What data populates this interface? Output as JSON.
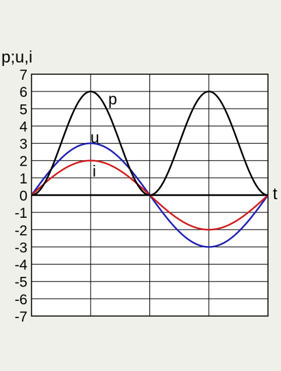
{
  "chart_data": {
    "type": "line",
    "title": "",
    "ylabel": "p;u,i",
    "xlabel": "t",
    "ylim": [
      -7,
      7
    ],
    "yticks": [
      "7",
      "6",
      "5",
      "4",
      "3",
      "2",
      "1",
      "0",
      "-1",
      "-2",
      "-3",
      "-4",
      "-5",
      "-6",
      "-7"
    ],
    "xlim_periods": [
      0,
      1
    ],
    "grid": true,
    "series": [
      {
        "name": "p",
        "label": "p",
        "color": "#000000",
        "amplitude": 3,
        "offset": 3,
        "frequency": 2,
        "phase": "-cos",
        "peak": 6,
        "min": 0
      },
      {
        "name": "u",
        "label": "u",
        "color": "#1f1fb4",
        "amplitude": 3,
        "offset": 0,
        "frequency": 1,
        "phase": "sin",
        "peak": 3,
        "min": -3
      },
      {
        "name": "i",
        "label": "i",
        "color": "#d01c1c",
        "amplitude": 2,
        "offset": 0,
        "frequency": 1,
        "phase": "sin",
        "peak": 2,
        "min": -2
      }
    ]
  }
}
